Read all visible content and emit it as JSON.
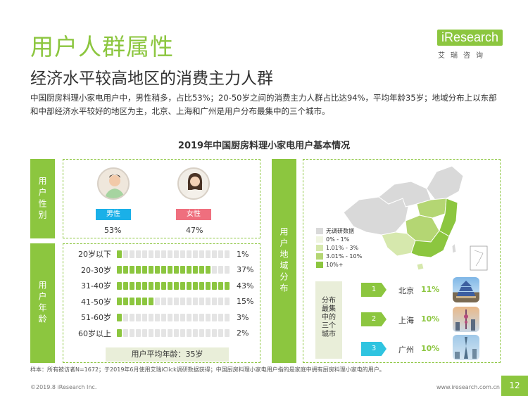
{
  "header": {
    "title": "用户人群属性",
    "subtitle": "经济水平较高地区的消费主力人群",
    "description": "中国厨房料理小家电用户中，男性稍多，占比53%；20-50岁之间的消费主力人群占比达94%，平均年龄35岁；地域分布上以东部和中部经济水平较好的地区为主，北京、上海和广州是用户分布最集中的三个城市。"
  },
  "logo": {
    "name": "iResearch",
    "sub": "艾瑞咨询"
  },
  "chart_title": "2019年中国厨房料理小家电用户基本情况",
  "gender": {
    "label": "用户性别",
    "male": {
      "label": "男性",
      "pct": "53%",
      "color": "#1ab0e8"
    },
    "female": {
      "label": "女性",
      "pct": "47%",
      "color": "#ef6f7e"
    }
  },
  "age": {
    "label": "用户年龄",
    "avg": "用户平均年龄：35岁"
  },
  "region": {
    "label": "用户地域分布",
    "legend": [
      "无调研数据",
      "0% - 1%",
      "1.01% - 3%",
      "3.01% - 10%",
      "10%+"
    ],
    "legend_colors": [
      "#d9d9d9",
      "#f0f5e1",
      "#d6e8ad",
      "#b4d673",
      "#8cc63f"
    ],
    "top_label": "分布最集中的三个城市",
    "cities": [
      {
        "rank": "1",
        "name": "北京",
        "pct": "11%",
        "color": "#8cc63f"
      },
      {
        "rank": "2",
        "name": "上海",
        "pct": "10%",
        "color": "#8cc63f"
      },
      {
        "rank": "3",
        "name": "广州",
        "pct": "10%",
        "color": "#2fc4e0"
      }
    ]
  },
  "chart_data": {
    "type": "bar",
    "categories": [
      "20岁以下",
      "20-30岁",
      "31-40岁",
      "41-50岁",
      "51-60岁",
      "60岁以上"
    ],
    "values": [
      1,
      37,
      43,
      15,
      3,
      2
    ],
    "value_labels": [
      "1%",
      "37%",
      "43%",
      "15%",
      "3%",
      "2%"
    ],
    "unit": "%",
    "orientation": "horizontal",
    "ylim": [
      0,
      43
    ]
  },
  "note": "样本：所有被访者N=1672；于2019年6月使用艾瑞iClick调研数据获得；中国厨房料理小家电用户指的是家庭中拥有厨房料理小家电的用户。",
  "footer": {
    "left": "©2019.8 iResearch Inc.",
    "right": "www.iresearch.com.cn",
    "page": "12"
  }
}
